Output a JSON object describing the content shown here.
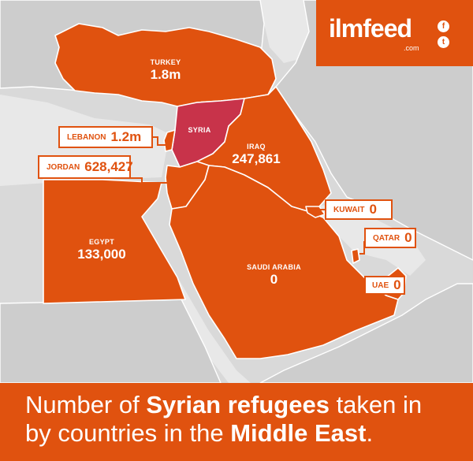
{
  "brand": {
    "name": "ilmfeed",
    "domain": ".com",
    "facebook_icon": "f",
    "twitter_icon": "t"
  },
  "countries": {
    "turkey": {
      "name": "TURKEY",
      "value": "1.8m"
    },
    "syria": {
      "name": "SYRIA"
    },
    "iraq": {
      "name": "IRAQ",
      "value": "247,861"
    },
    "lebanon": {
      "name": "LEBANON",
      "value": "1.2m"
    },
    "jordan": {
      "name": "JORDAN",
      "value": "628,427"
    },
    "egypt": {
      "name": "EGYPT",
      "value": "133,000"
    },
    "saudi_arabia": {
      "name": "SAUDI ARABIA",
      "value": "0"
    },
    "kuwait": {
      "name": "KUWAIT",
      "value": "0"
    },
    "qatar": {
      "name": "QATAR",
      "value": "0"
    },
    "uae": {
      "name": "UAE",
      "value": "0"
    }
  },
  "headline": {
    "part1": "Number of ",
    "emphasis1": "Syrian refugees",
    "part2": " taken in",
    "part3": "by countries in the ",
    "emphasis2": "Middle East",
    "part4": "."
  },
  "colors": {
    "highlight": "#e0520f",
    "syria": "#c8334a",
    "background": "#d9d9d9"
  }
}
